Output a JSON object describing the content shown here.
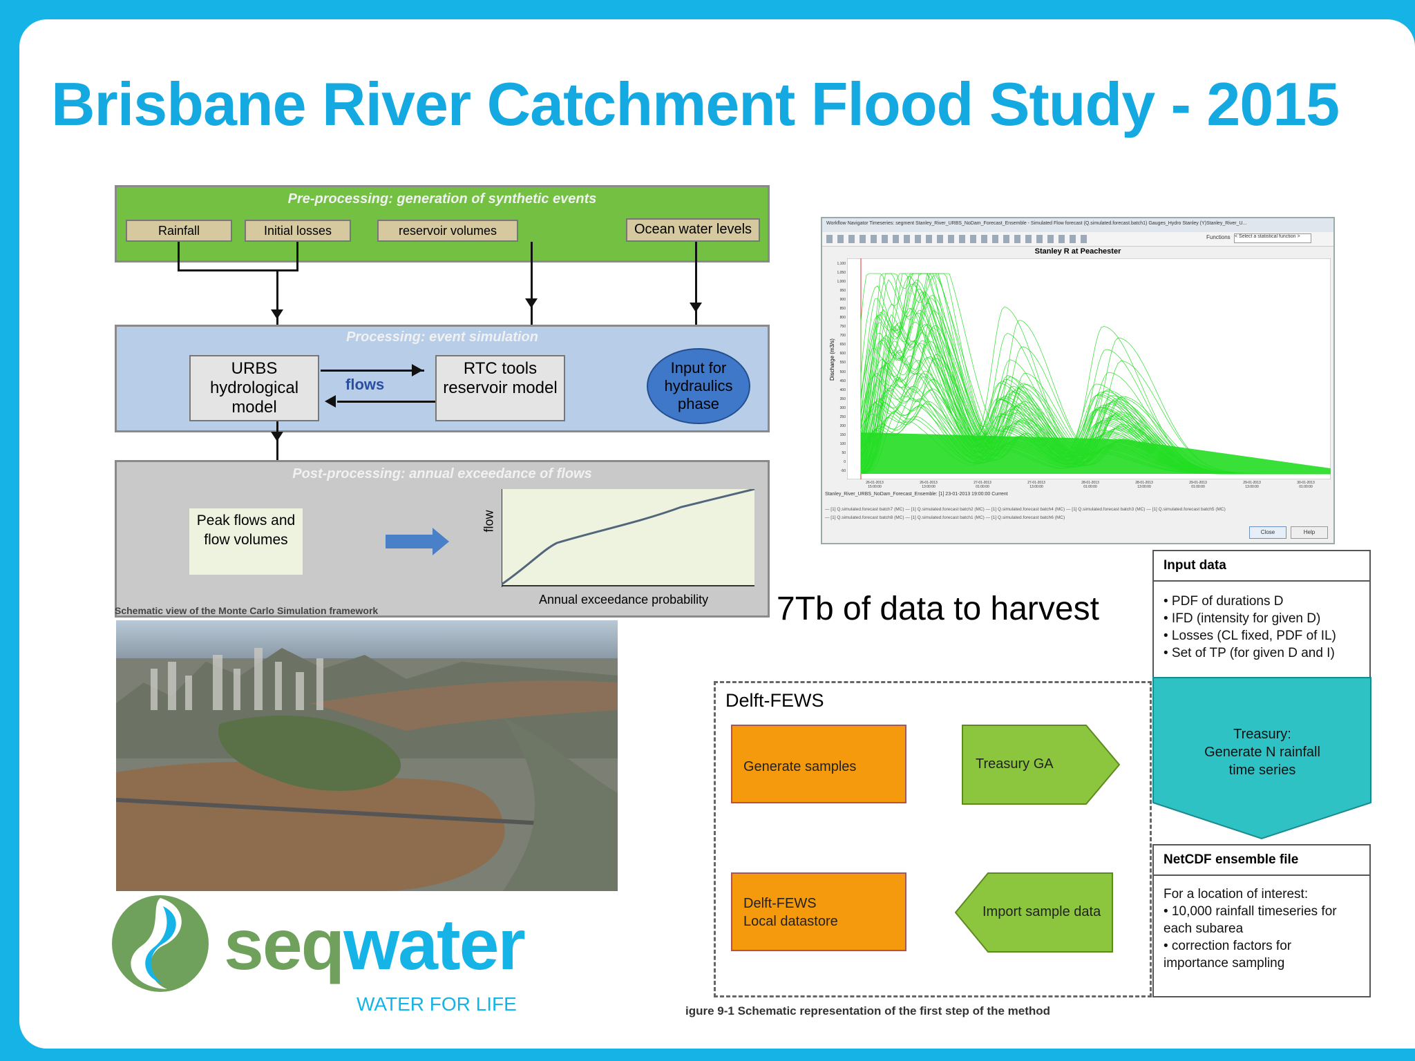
{
  "title": "Brisbane River Catchment Flood Study - 2015",
  "mc_diagram": {
    "pre_title": "Pre-processing: generation of synthetic events",
    "inputs": [
      "Rainfall",
      "Initial losses",
      "reservoir volumes",
      "Ocean water levels"
    ],
    "proc_title": "Processing: event simulation",
    "urbs": "URBS hydrological model",
    "flows": "flows",
    "rtc": "RTC tools reservoir model",
    "hydraulics": "Input for hydraulics phase",
    "post_title": "Post-processing: annual exceedance of flows",
    "peak": "Peak flows and flow volumes",
    "flow_axis": "flow",
    "aep_axis": "Annual exceedance probability",
    "caption": "Schematic view of the Monte Carlo Simulation framework"
  },
  "fews_window": {
    "titlebar": "Workflow Navigator Timeseries: segment Stanley_River_URBS_NoDam_Forecast_Ensemble - Simulated Flow forecast (Q.simulated.forecast.batch1) Gauges_Hydro Stanley (Y)Stanley_River_U...",
    "functions_label": "Functions",
    "functions_select": "< Select a statistical function >",
    "chart_title": "Stanley R at Peachester",
    "y_label": "Discharge (m3/s)",
    "y_ticks": [
      "1,100",
      "1,050",
      "1,000",
      "950",
      "900",
      "850",
      "800",
      "750",
      "700",
      "650",
      "600",
      "550",
      "500",
      "450",
      "400",
      "350",
      "300",
      "250",
      "200",
      "150",
      "100",
      "50",
      "0",
      "-50"
    ],
    "x_ticks": [
      "26-01-2013\n15:00:00",
      "26-01-2013\n13:00:00",
      "27-01-2013\n01:00:00",
      "27-01-2013\n13:00:00",
      "28-01-2013\n01:00:00",
      "28-01-2013\n13:00:00",
      "29-01-2013\n01:00:00",
      "29-01-2013\n13:00:00",
      "30-01-2013\n01:00:00"
    ],
    "forecast_line": "Stanley_River_URBS_NoDam_Forecast_Ensemble: [1] 23-01-2013 19:00:00 Current",
    "legend_row1": "— [1] Q.simulated.forecast batch7 (MC)  — [1] Q.simulated.forecast batch2 (MC)  — [1] Q.simulated.forecast batch4 (MC)  — [1] Q.simulated.forecast batch3 (MC)  — [1] Q.simulated.forecast batch5 (MC)",
    "legend_row2": "— [1] Q.simulated.forecast batch8 (MC)  — [1] Q.simulated.forecast batch1 (MC)  — [1] Q.simulated.forecast batch6 (MC)",
    "close": "Close",
    "help": "Help",
    "series_color": "#22dd22"
  },
  "harvest_text": "7Tb of data to harvest",
  "fews_flow": {
    "label": "Delft-FEWS",
    "generate": "Generate samples",
    "treasury_ga": "Treasury GA",
    "datastore_line1": "Delft-FEWS",
    "datastore_line2": "Local datastore",
    "import": "Import sample data",
    "caption": "igure 9-1 Schematic representation of the first step of the method"
  },
  "input_data": {
    "header": "Input data",
    "items": [
      "• PDF of durations D",
      "• IFD (intensity for given D)",
      "• Losses (CL fixed, PDF of IL)",
      "• Set of TP (for given D and I)"
    ]
  },
  "treasury": {
    "line1": "Treasury:",
    "line2": "Generate N rainfall",
    "line3": "time series"
  },
  "netcdf": {
    "header": "NetCDF ensemble file",
    "line1": "For a location of interest:",
    "line2": "• 10,000 rainfall timeseries for",
    "line3": "each subarea",
    "line4": "• correction factors for",
    "line5": "importance sampling"
  },
  "logo": {
    "name_part1": "seq",
    "name_part2": "water",
    "tagline": "WATER FOR LIFE"
  },
  "colors": {
    "accent": "#16b4e6",
    "title": "#14a9e1",
    "pre_band": "#74c043",
    "proc_band": "#b8cde8",
    "post_band": "#c9c9c9",
    "orange": "#f59a0c",
    "lime": "#8cc63f",
    "teal": "#2ec2c4"
  }
}
